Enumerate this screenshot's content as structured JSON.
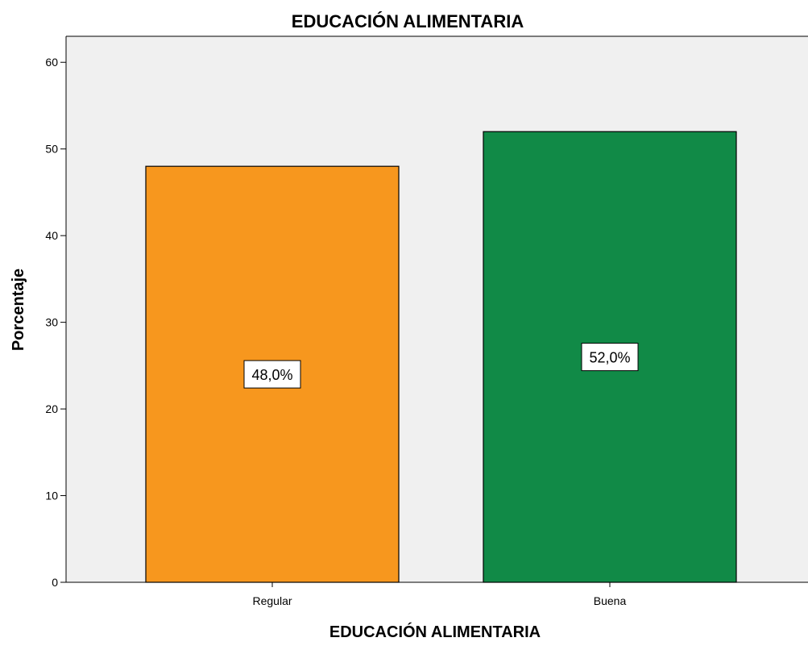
{
  "chart_data": {
    "type": "bar",
    "title": "EDUCACIÓN ALIMENTARIA",
    "xlabel": "EDUCACIÓN ALIMENTARIA",
    "ylabel": "Porcentaje",
    "categories": [
      "Regular",
      "Buena"
    ],
    "values": [
      48.0,
      52.0
    ],
    "data_labels": [
      "48,0%",
      "52,0%"
    ],
    "colors": [
      "#F7971E",
      "#118A47"
    ],
    "ylim": [
      0,
      63
    ],
    "yticks": [
      0,
      10,
      20,
      30,
      40,
      50,
      60
    ],
    "grid": false,
    "legend": "none",
    "plot_background": "#F0F0F0"
  }
}
